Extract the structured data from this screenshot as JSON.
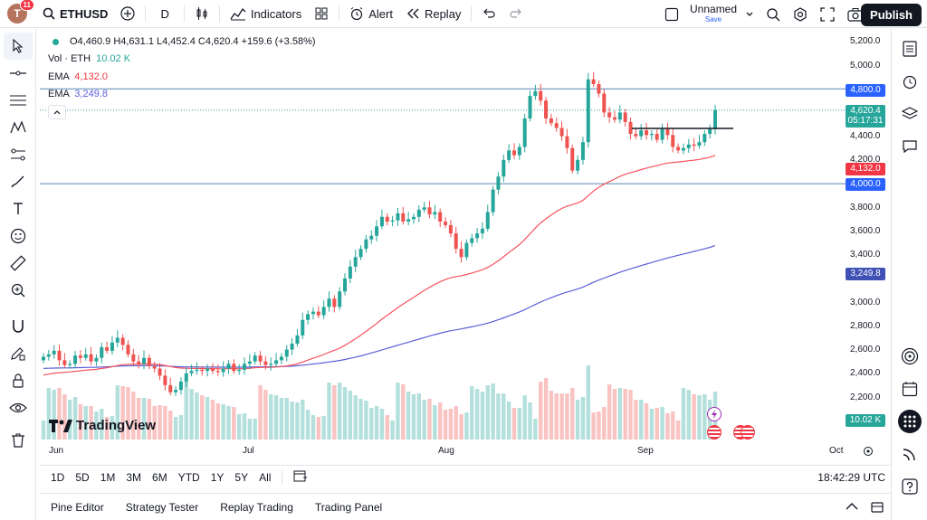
{
  "topbar": {
    "avatar_letter": "T",
    "avatar_badge": "11",
    "symbol": "ETHUSD",
    "interval": "D",
    "indicators_label": "Indicators",
    "alert_label": "Alert",
    "replay_label": "Replay",
    "layout_name": "Unnamed",
    "layout_status": "Save",
    "publish_label": "Publish"
  },
  "legend": {
    "ohlc": "O4,460.9 H4,631.1 L4,452.4 C4,620.4 +159.6 (+3.58%)",
    "vol_label": "Vol · ETH",
    "vol_value": "10.02 K",
    "ema1_label": "EMA",
    "ema1_value": "4,132.0",
    "ema2_label": "EMA",
    "ema2_value": "3,249.8"
  },
  "yaxis": {
    "ticks": [
      "5,200.0",
      "5,000.0",
      "4,400.0",
      "4,200.0",
      "3,800.0",
      "3,600.0",
      "3,400.0",
      "3,000.0",
      "2,800.0",
      "2,600.0",
      "2,400.0",
      "2,200.0"
    ],
    "tags": {
      "level_high": "4,800.0",
      "last_price": "4,620.4",
      "countdown": "05:17:31",
      "ema_fast": "4,132.0",
      "level_low": "4,000.0",
      "ema_slow": "3,249.8",
      "volume": "10.02 K"
    }
  },
  "xaxis": {
    "labels": [
      "Jun",
      "Jul",
      "Aug",
      "Sep",
      "Oct"
    ]
  },
  "watermark": "TradingView",
  "bottombar": {
    "ranges": [
      "1D",
      "5D",
      "1M",
      "3M",
      "6M",
      "YTD",
      "1Y",
      "5Y",
      "All"
    ],
    "clock": "18:42:29 UTC"
  },
  "panelbar": {
    "tabs": [
      "Pine Editor",
      "Strategy Tester",
      "Replay Trading",
      "Trading Panel"
    ]
  },
  "colors": {
    "up": "#26a69a",
    "down": "#ef5350",
    "ema_fast": "#f7525f",
    "ema_slow": "#5b5fd6",
    "level": "#2962ff",
    "last_price": "#26a69a"
  }
}
